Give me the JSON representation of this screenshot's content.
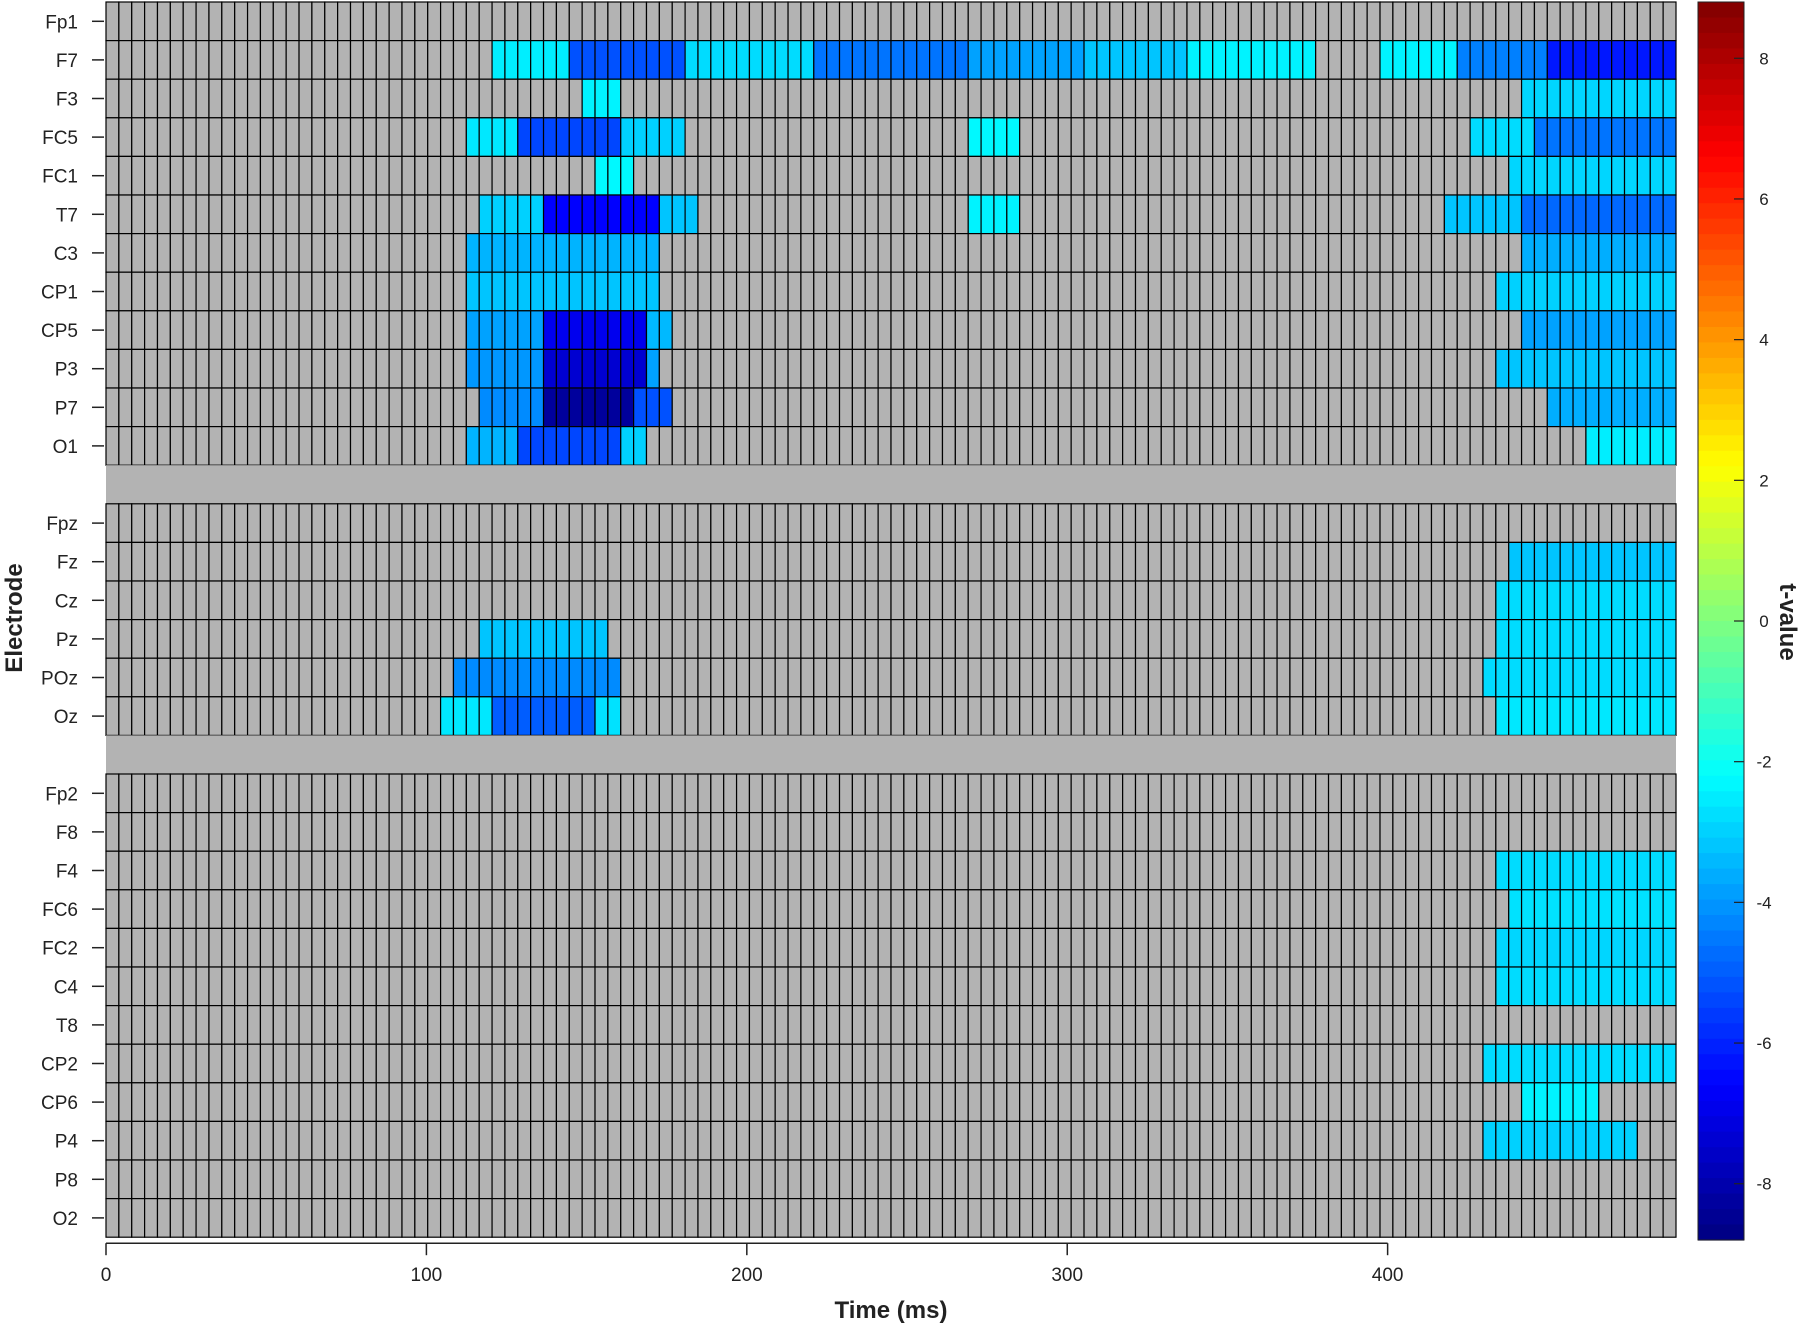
{
  "chart_data": {
    "type": "heatmap",
    "xlabel": "Time (ms)",
    "ylabel": "Electrode",
    "x_ticks": [
      0,
      100,
      200,
      300,
      400
    ],
    "x_tick_labels": [
      "0",
      "100",
      "200",
      "300",
      "400"
    ],
    "xlim": [
      0,
      490
    ],
    "time_bin_ms": 4,
    "n_bins": 122,
    "null_color": "#b3b3b3",
    "colorbar": {
      "label": "t-value",
      "range": [
        -8.8,
        8.8
      ],
      "ticks": [
        8,
        6,
        4,
        2,
        0,
        -2,
        -4,
        -6,
        -8
      ],
      "tick_labels": [
        "8",
        "6",
        "4",
        "2",
        "0",
        "-2",
        "-4",
        "-6",
        "-8"
      ],
      "colormap": "jet"
    },
    "groups": [
      {
        "electrodes": [
          {
            "name": "Fp1",
            "segments": []
          },
          {
            "name": "F7",
            "segments": [
              [
                122,
                146,
                -2.5
              ],
              [
                146,
                182,
                -5.2
              ],
              [
                182,
                220,
                -2.8
              ],
              [
                220,
                270,
                -4.6
              ],
              [
                270,
                305,
                -3.8
              ],
              [
                305,
                335,
                -3.2
              ],
              [
                335,
                375,
                -2.4
              ],
              [
                395,
                420,
                -2.4
              ],
              [
                420,
                450,
                -4.4
              ],
              [
                450,
                490,
                -6.2
              ]
            ]
          },
          {
            "name": "F3",
            "segments": [
              [
                148,
                162,
                -2.4
              ],
              [
                442,
                490,
                -2.9
              ]
            ]
          },
          {
            "name": "FC5",
            "segments": [
              [
                114,
                128,
                -2.6
              ],
              [
                128,
                162,
                -5.4
              ],
              [
                162,
                179,
                -3.0
              ],
              [
                268,
                283,
                -2.3
              ],
              [
                425,
                444,
                -2.8
              ],
              [
                444,
                490,
                -4.6
              ]
            ]
          },
          {
            "name": "FC1",
            "segments": [
              [
                152,
                163,
                -2.3
              ],
              [
                436,
                490,
                -2.9
              ]
            ]
          },
          {
            "name": "T7",
            "segments": [
              [
                118,
                135,
                -3.0
              ],
              [
                135,
                172,
                -6.6
              ],
              [
                172,
                183,
                -3.2
              ],
              [
                268,
                283,
                -2.4
              ],
              [
                417,
                442,
                -3.2
              ],
              [
                442,
                490,
                -4.8
              ]
            ]
          },
          {
            "name": "C3",
            "segments": [
              [
                114,
                173,
                -3.5
              ],
              [
                442,
                490,
                -3.6
              ]
            ]
          },
          {
            "name": "CP1",
            "segments": [
              [
                114,
                172,
                -3.2
              ],
              [
                431,
                490,
                -3.0
              ]
            ]
          },
          {
            "name": "CP5",
            "segments": [
              [
                114,
                136,
                -3.8
              ],
              [
                136,
                170,
                -6.9
              ],
              [
                170,
                176,
                -3.4
              ],
              [
                442,
                490,
                -3.8
              ]
            ]
          },
          {
            "name": "P3",
            "segments": [
              [
                114,
                135,
                -4.0
              ],
              [
                135,
                168,
                -7.4
              ],
              [
                168,
                172,
                -3.8
              ],
              [
                431,
                490,
                -3.2
              ]
            ]
          },
          {
            "name": "P7",
            "segments": [
              [
                118,
                135,
                -4.2
              ],
              [
                135,
                165,
                -8.3
              ],
              [
                165,
                176,
                -5.2
              ],
              [
                447,
                490,
                -3.6
              ]
            ]
          },
          {
            "name": "O1",
            "segments": [
              [
                114,
                130,
                -3.5
              ],
              [
                130,
                162,
                -5.4
              ],
              [
                162,
                168,
                -3.0
              ],
              [
                462,
                490,
                -2.5
              ]
            ]
          }
        ]
      },
      {
        "electrodes": [
          {
            "name": "Fpz",
            "segments": []
          },
          {
            "name": "Fz",
            "segments": [
              [
                436,
                490,
                -3.2
              ]
            ]
          },
          {
            "name": "Cz",
            "segments": [
              [
                431,
                490,
                -2.8
              ]
            ]
          },
          {
            "name": "Pz",
            "segments": [
              [
                118,
                156,
                -3.2
              ],
              [
                431,
                490,
                -2.8
              ]
            ]
          },
          {
            "name": "POz",
            "segments": [
              [
                110,
                160,
                -4.2
              ],
              [
                427,
                490,
                -2.8
              ]
            ]
          },
          {
            "name": "Oz",
            "segments": [
              [
                106,
                120,
                -2.6
              ],
              [
                120,
                152,
                -5.0
              ],
              [
                152,
                160,
                -2.7
              ],
              [
                431,
                490,
                -2.6
              ]
            ]
          }
        ]
      },
      {
        "electrodes": [
          {
            "name": "Fp2",
            "segments": []
          },
          {
            "name": "F8",
            "segments": []
          },
          {
            "name": "F4",
            "segments": [
              [
                431,
                490,
                -2.8
              ]
            ]
          },
          {
            "name": "FC6",
            "segments": [
              [
                436,
                490,
                -2.7
              ]
            ]
          },
          {
            "name": "FC2",
            "segments": [
              [
                431,
                490,
                -2.9
              ]
            ]
          },
          {
            "name": "C4",
            "segments": [
              [
                431,
                490,
                -2.8
              ]
            ]
          },
          {
            "name": "T8",
            "segments": []
          },
          {
            "name": "CP2",
            "segments": [
              [
                427,
                490,
                -2.8
              ]
            ]
          },
          {
            "name": "CP6",
            "segments": [
              [
                440,
                466,
                -2.4
              ]
            ]
          },
          {
            "name": "P4",
            "segments": [
              [
                427,
                478,
                -3.0
              ]
            ]
          },
          {
            "name": "P8",
            "segments": []
          },
          {
            "name": "O2",
            "segments": []
          }
        ]
      }
    ]
  }
}
